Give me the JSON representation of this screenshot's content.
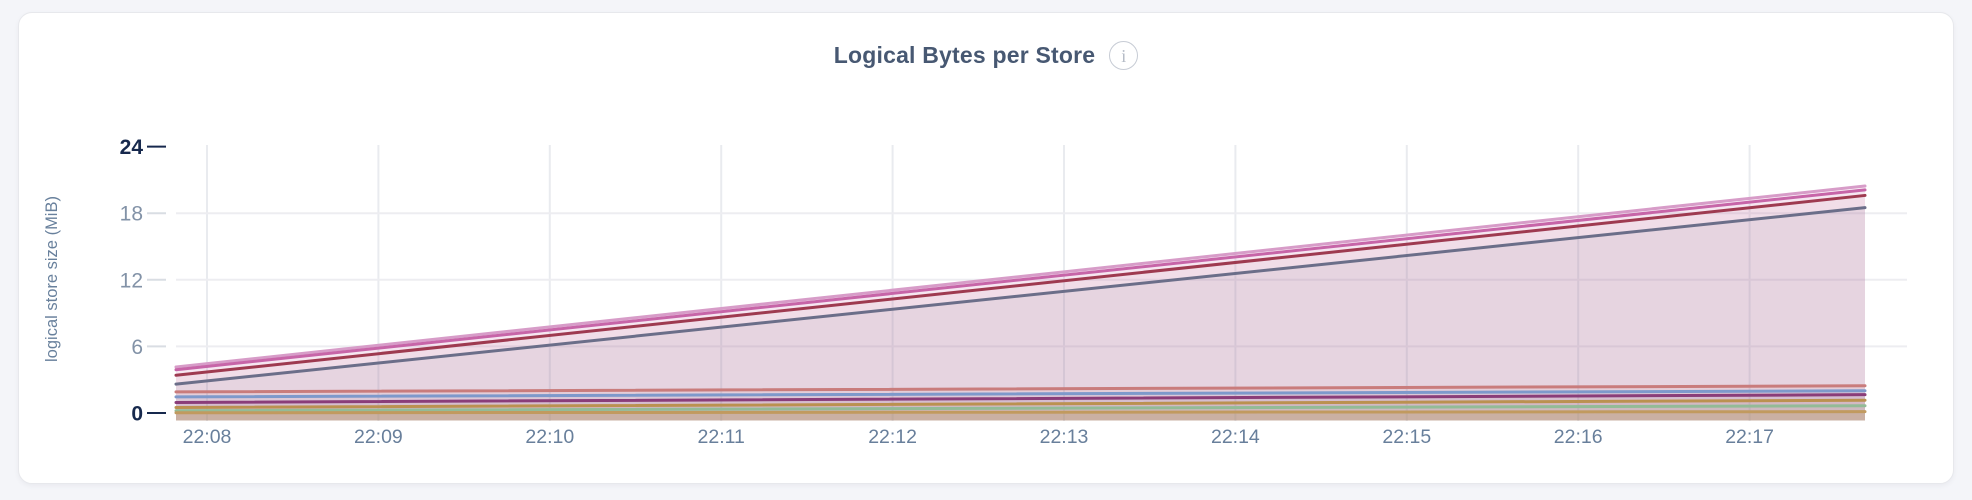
{
  "page": {
    "background": "#f4f5f9"
  },
  "card": {
    "background": "#ffffff",
    "border_color": "#e7e8ec"
  },
  "header": {
    "title_color": "#475872",
    "info_icon_glyph": "i",
    "info_icon_border": "#c7ccd5",
    "info_icon_color": "#b4bbc6"
  },
  "chart_data": {
    "type": "area",
    "title": "Logical Bytes per Store",
    "xlabel": "",
    "ylabel": "logical store size (MiB)",
    "x_ticks": [
      "22:08",
      "22:09",
      "22:10",
      "22:11",
      "22:12",
      "22:13",
      "22:14",
      "22:15",
      "22:16",
      "22:17"
    ],
    "y_ticks": [
      {
        "label": "24",
        "value": 24,
        "emphasis": true,
        "gridline": false
      },
      {
        "label": "18",
        "value": 18,
        "emphasis": false,
        "gridline": true
      },
      {
        "label": "12",
        "value": 12,
        "emphasis": false,
        "gridline": true
      },
      {
        "label": "6",
        "value": 6,
        "emphasis": false,
        "gridline": true
      },
      {
        "label": "0",
        "value": 0,
        "emphasis": true,
        "gridline": false
      }
    ],
    "ylim": [
      0,
      24
    ],
    "unit": "MiB",
    "grid": {
      "vertical": true,
      "horizontal": true
    },
    "legend": "none",
    "series": [
      {
        "id": "store-series-1",
        "color": "#d79cc8",
        "fill_opacity": 0.08,
        "trend": "linear",
        "values_mib": {
          "start": 4.15,
          "end": 20.45
        }
      },
      {
        "id": "store-series-2",
        "color": "#c765a8",
        "fill_opacity": 0.11,
        "trend": "linear",
        "values_mib": {
          "start": 3.9,
          "end": 20.1
        }
      },
      {
        "id": "store-series-3",
        "color": "#9e3a50",
        "fill_opacity": 0.05,
        "trend": "linear",
        "values_mib": {
          "start": 3.4,
          "end": 19.6
        }
      },
      {
        "id": "store-series-4",
        "color": "#6b6e89",
        "fill_opacity": 0.08,
        "trend": "linear",
        "values_mib": {
          "start": 2.6,
          "end": 18.5
        }
      },
      {
        "id": "store-series-5",
        "color": "#c97c7c",
        "fill_opacity": 0.08,
        "trend": "linear",
        "values_mib": {
          "start": 1.9,
          "end": 2.45
        }
      },
      {
        "id": "store-series-6",
        "color": "#7e99cb",
        "fill_opacity": 0.08,
        "trend": "linear",
        "values_mib": {
          "start": 1.45,
          "end": 2.0
        }
      },
      {
        "id": "store-series-7",
        "color": "#8a3d79",
        "fill_opacity": 0.08,
        "trend": "linear",
        "values_mib": {
          "start": 0.95,
          "end": 1.65
        }
      },
      {
        "id": "store-series-8",
        "color": "#bb9150",
        "fill_opacity": 0.08,
        "trend": "linear",
        "values_mib": {
          "start": 0.5,
          "end": 1.15
        }
      },
      {
        "id": "store-series-9",
        "color": "#93bb97",
        "fill_opacity": 0.08,
        "trend": "linear",
        "values_mib": {
          "start": 0.2,
          "end": 0.65
        }
      },
      {
        "id": "store-series-10",
        "color": "#c19a5f",
        "fill_opacity": 0.3,
        "trend": "linear",
        "values_mib": {
          "start": 0.02,
          "end": 0.12
        }
      }
    ],
    "colors": {
      "grid_h": "#ededf1",
      "grid_v": "#e9ebef",
      "tick_dash": "#d9dde3",
      "tick_dash_emphasis": "#17294d",
      "axis_text": "#8292a7",
      "axis_text_emphasis": "#17294d",
      "x_axis_text": "#687f9b",
      "y_axis_label": "#68809c"
    }
  }
}
